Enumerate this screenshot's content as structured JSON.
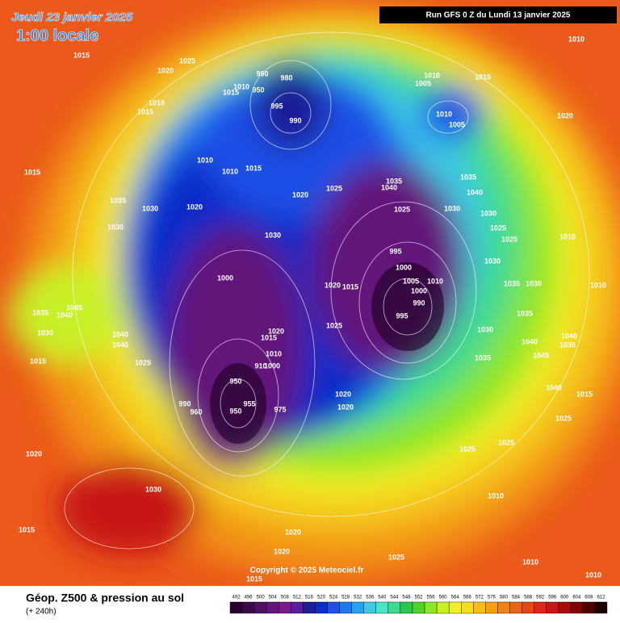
{
  "header": {
    "date": "Jeudi 23 janvier 2025",
    "time": "1:00 locale",
    "run": "Run GFS 0 Z du Lundi 13 janvier 2025"
  },
  "footer": {
    "copyright": "Copyright © 2025 Meteociel.fr",
    "title": "Géop. Z500 & pression au sol",
    "step": "(+ 240h)"
  },
  "isobar_labels": [
    1010,
    1015,
    1025,
    1020,
    990,
    980,
    1010,
    950,
    1015,
    995,
    990,
    1010,
    1005,
    1015,
    1010,
    1005,
    1010,
    1015,
    1020,
    1010,
    1010,
    1015,
    1015,
    1035,
    1040,
    1020,
    1025,
    1035,
    1035,
    1030,
    1020,
    1040,
    1025,
    1030,
    1030,
    1030,
    1025,
    1030,
    1025,
    1010,
    995,
    1000,
    1000,
    1030,
    1005,
    1010,
    1020,
    1015,
    1000,
    1035,
    1030,
    1010,
    990,
    995,
    1035,
    1045,
    1040,
    1035,
    1030,
    1020,
    1040,
    1040,
    1025,
    1030,
    1015,
    1040,
    1040,
    1035,
    1010,
    1045,
    1015,
    1025,
    1035,
    1000,
    910,
    950,
    1020,
    1040,
    1015,
    1020,
    955,
    990,
    975,
    950,
    960,
    1025,
    1025,
    1025,
    1020,
    1030,
    1010,
    1015,
    1020,
    1020,
    1025,
    1010,
    1010,
    1015
  ],
  "scale": {
    "labels": [
      492,
      496,
      500,
      504,
      508,
      512,
      516,
      520,
      524,
      528,
      532,
      536,
      540,
      544,
      548,
      552,
      556,
      560,
      564,
      568,
      572,
      576,
      580,
      584,
      588,
      592,
      596,
      600,
      604,
      608,
      612
    ],
    "colors": [
      "#2a0033",
      "#3c0a4a",
      "#4e0f62",
      "#62147a",
      "#7a1a8e",
      "#5a1e9a",
      "#1e1e96",
      "#0a2cc8",
      "#1e50e6",
      "#1e78f0",
      "#28a0f0",
      "#3cc8e6",
      "#46e6c8",
      "#3cdc8c",
      "#28c850",
      "#50d228",
      "#8ce628",
      "#c8f028",
      "#f0f028",
      "#f5dc1e",
      "#f5be14",
      "#f5a014",
      "#f08214",
      "#eb6414",
      "#e64614",
      "#dc2814",
      "#c81414",
      "#aa0a0a",
      "#820000",
      "#500000",
      "#1e0000"
    ]
  }
}
